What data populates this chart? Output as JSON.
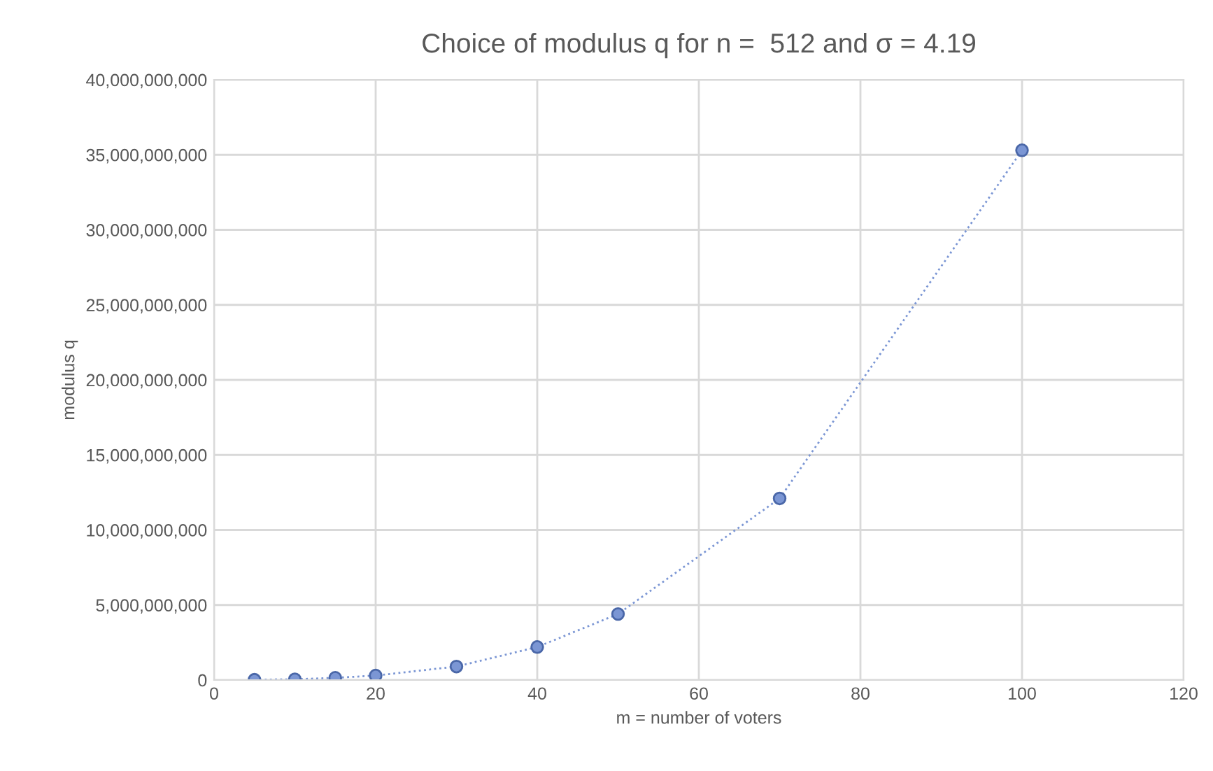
{
  "chart_data": {
    "type": "line",
    "title": "Choice of modulus q for n =  512 and σ = 4.19",
    "xlabel": "m = number of voters",
    "ylabel": "modulus q",
    "x": [
      5,
      10,
      15,
      20,
      30,
      40,
      50,
      70,
      100
    ],
    "series": [
      {
        "color": "#7b96d4",
        "values": [
          20000000,
          50000000,
          150000000,
          300000000,
          900000000,
          2200000000,
          4400000000,
          12100000000,
          35300000000
        ]
      }
    ],
    "xlim": [
      0,
      120
    ],
    "xticks": [
      0,
      20,
      40,
      60,
      80,
      100,
      120
    ],
    "ylim": [
      0,
      40000000000
    ],
    "yticks": [
      {
        "value": 0,
        "label": "0"
      },
      {
        "value": 5000000000,
        "label": "5,000,000,000"
      },
      {
        "value": 10000000000,
        "label": "10,000,000,000"
      },
      {
        "value": 15000000000,
        "label": "15,000,000,000"
      },
      {
        "value": 20000000000,
        "label": "20,000,000,000"
      },
      {
        "value": 25000000000,
        "label": "25,000,000,000"
      },
      {
        "value": 30000000000,
        "label": "30,000,000,000"
      },
      {
        "value": 35000000000,
        "label": "35,000,000,000"
      },
      {
        "value": 40000000000,
        "label": "40,000,000,000"
      }
    ],
    "grid": true,
    "marker": "circle",
    "line_style": "dotted"
  }
}
